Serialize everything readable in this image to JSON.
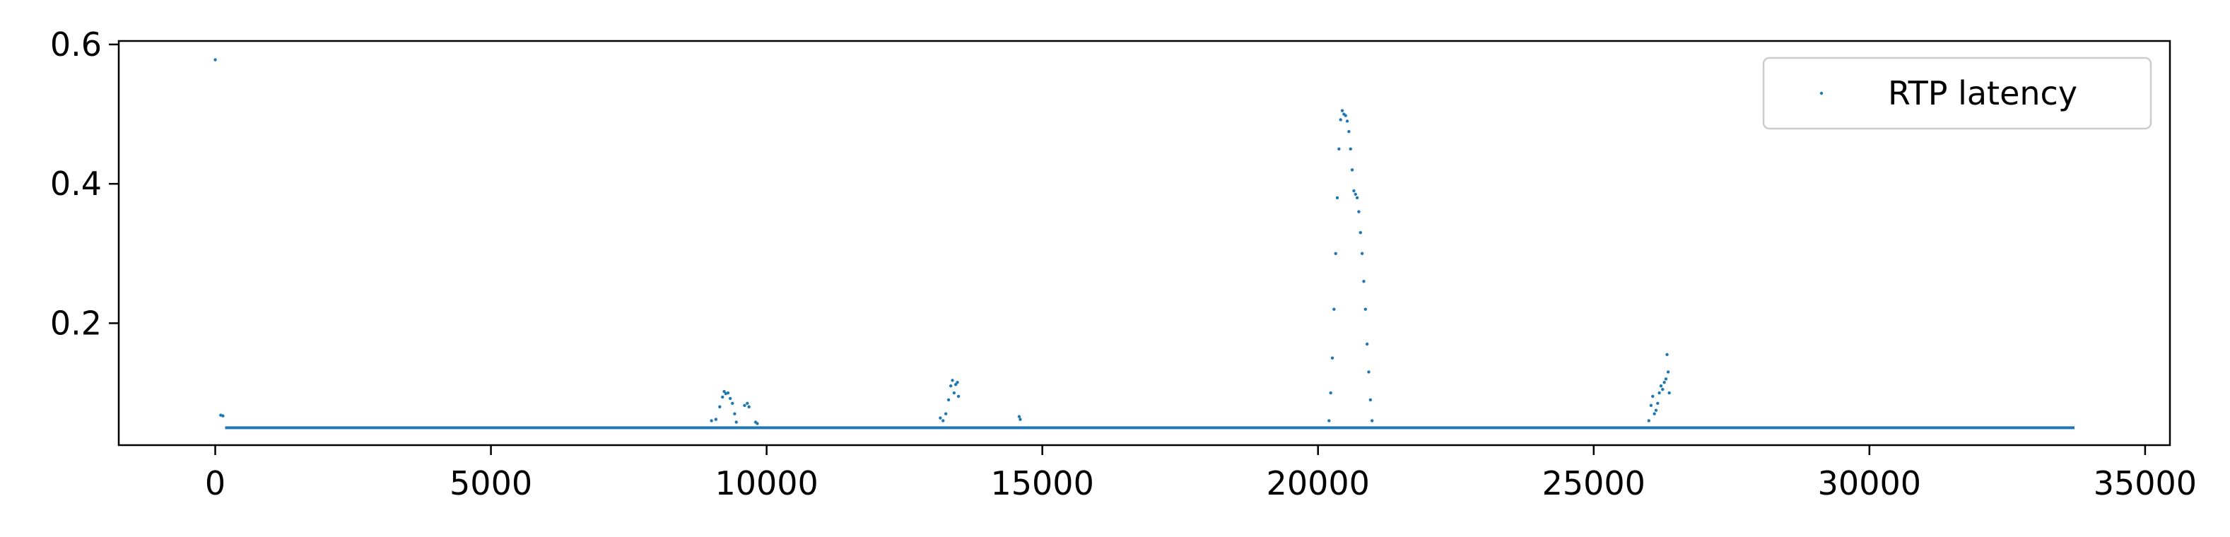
{
  "chart_data": {
    "type": "scatter",
    "title": "",
    "xlabel": "",
    "ylabel": "",
    "xlim": [
      -1750,
      35450
    ],
    "ylim": [
      0.025,
      0.605
    ],
    "xticks": [
      0,
      5000,
      10000,
      15000,
      20000,
      25000,
      30000,
      35000
    ],
    "yticks": [
      0.2,
      0.4,
      0.6
    ],
    "grid": false,
    "legend": {
      "placement": "upper right",
      "entries": [
        "RTP latency"
      ]
    },
    "series": [
      {
        "name": "RTP latency",
        "color": "#1f77b4",
        "marker": "point",
        "points": [
          [
            0,
            0.578
          ],
          [
            100,
            0.068
          ],
          [
            140,
            0.067
          ],
          [
            9000,
            0.06
          ],
          [
            9080,
            0.062
          ],
          [
            9150,
            0.08
          ],
          [
            9200,
            0.094
          ],
          [
            9230,
            0.102
          ],
          [
            9260,
            0.099
          ],
          [
            9300,
            0.1
          ],
          [
            9340,
            0.092
          ],
          [
            9380,
            0.085
          ],
          [
            9420,
            0.07
          ],
          [
            9450,
            0.058
          ],
          [
            9600,
            0.082
          ],
          [
            9650,
            0.085
          ],
          [
            9680,
            0.08
          ],
          [
            9800,
            0.058
          ],
          [
            9830,
            0.056
          ],
          [
            13150,
            0.064
          ],
          [
            13200,
            0.06
          ],
          [
            13250,
            0.07
          ],
          [
            13300,
            0.09
          ],
          [
            13340,
            0.11
          ],
          [
            13370,
            0.118
          ],
          [
            13400,
            0.1
          ],
          [
            13430,
            0.112
          ],
          [
            13460,
            0.115
          ],
          [
            13480,
            0.095
          ],
          [
            14580,
            0.066
          ],
          [
            14600,
            0.062
          ],
          [
            20200,
            0.06
          ],
          [
            20230,
            0.1
          ],
          [
            20260,
            0.15
          ],
          [
            20290,
            0.22
          ],
          [
            20320,
            0.3
          ],
          [
            20350,
            0.38
          ],
          [
            20380,
            0.45
          ],
          [
            20410,
            0.492
          ],
          [
            20440,
            0.505
          ],
          [
            20470,
            0.5
          ],
          [
            20500,
            0.498
          ],
          [
            20530,
            0.49
          ],
          [
            20560,
            0.475
          ],
          [
            20590,
            0.45
          ],
          [
            20620,
            0.42
          ],
          [
            20650,
            0.39
          ],
          [
            20680,
            0.385
          ],
          [
            20710,
            0.38
          ],
          [
            20740,
            0.36
          ],
          [
            20770,
            0.33
          ],
          [
            20800,
            0.3
          ],
          [
            20830,
            0.26
          ],
          [
            20860,
            0.22
          ],
          [
            20890,
            0.17
          ],
          [
            20920,
            0.13
          ],
          [
            20950,
            0.09
          ],
          [
            20980,
            0.06
          ],
          [
            26000,
            0.06
          ],
          [
            26040,
            0.082
          ],
          [
            26070,
            0.095
          ],
          [
            26100,
            0.07
          ],
          [
            26130,
            0.075
          ],
          [
            26160,
            0.085
          ],
          [
            26190,
            0.1
          ],
          [
            26220,
            0.11
          ],
          [
            26250,
            0.105
          ],
          [
            26280,
            0.115
          ],
          [
            26310,
            0.12
          ],
          [
            26330,
            0.155
          ],
          [
            26350,
            0.13
          ],
          [
            26370,
            0.1
          ]
        ],
        "baseline": {
          "x_start": 180,
          "x_end": 33720,
          "y": 0.05
        }
      }
    ]
  }
}
